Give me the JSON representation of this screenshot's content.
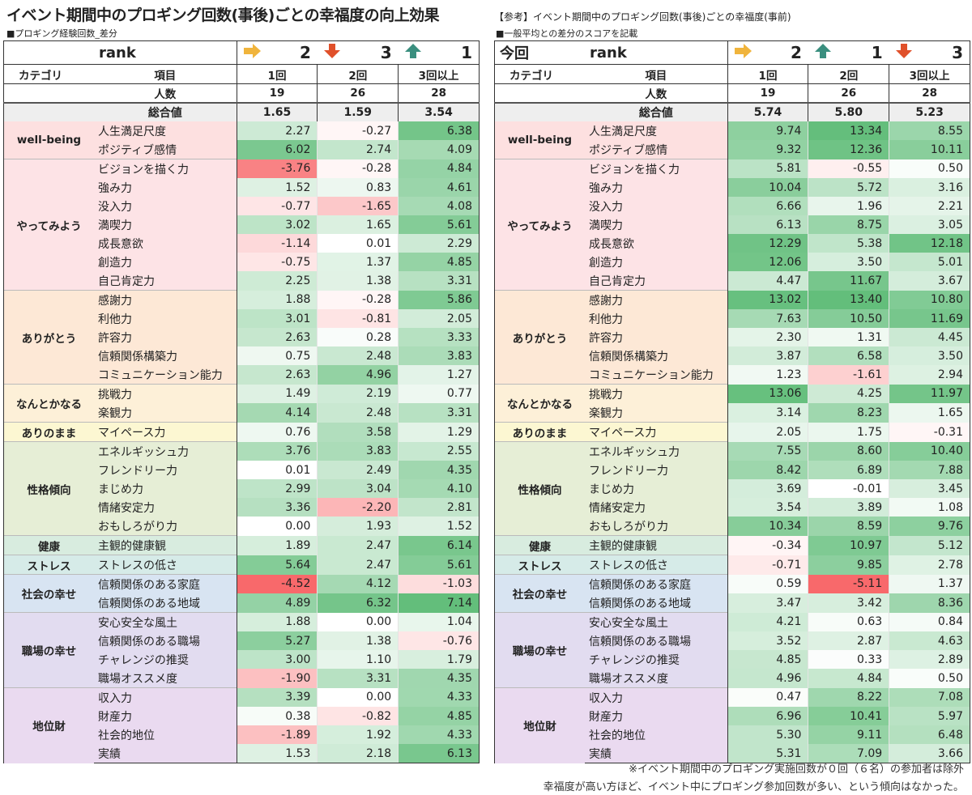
{
  "left": {
    "title": "イベント期間中のプロギング回数(事後)ごとの幸福度の向上効果",
    "subtitle": "■プロギング経験回数_差分",
    "corner": "",
    "rank_label": "rank",
    "hdr_cat": "カテゴリ",
    "hdr_item": "項目",
    "hdr_n": "人数",
    "total_label": "総合値"
  },
  "right": {
    "title": "【参考】イベント期間中のプロギング回数(事後)ごとの幸福度(事前)",
    "subtitle": "■一般平均との差分のスコアを記載",
    "corner": "今回",
    "rank_label": "rank",
    "hdr_cat": "カテゴリ",
    "hdr_item": "項目",
    "hdr_n": "人数",
    "total_label": "総合値"
  },
  "notes": {
    "line1": "※イベント期間中のプロギング実施回数が０回（６名）の参加者は除外",
    "line2": "幸福度が高い方ほど、イベント中にプロギング参加回数が多い、という傾向はなかった。"
  },
  "colors": {
    "positive": "#63be7b",
    "negative": "#f8696b",
    "neutral": "#ffffff",
    "arrow_side": "#f0b43c",
    "arrow_down": "#e0502a",
    "arrow_up": "#3a8f7f"
  },
  "categories": [
    {
      "name": "well-being",
      "color": "#fde0e0",
      "items": [
        "人生満足尺度",
        "ポジティブ感情"
      ]
    },
    {
      "name": "やってみよう",
      "color": "#fde3e6",
      "items": [
        "ビジョンを描く力",
        "強み力",
        "没入力",
        "満喫力",
        "成長意欲",
        "創造力",
        "自己肯定力"
      ]
    },
    {
      "name": "ありがとう",
      "color": "#fde8d6",
      "items": [
        "感謝力",
        "利他力",
        "許容力",
        "信頼関係構築力",
        "コミュニケーション能力"
      ]
    },
    {
      "name": "なんとかなる",
      "color": "#fdf0d8",
      "items": [
        "挑戦力",
        "楽観力"
      ]
    },
    {
      "name": "ありのまま",
      "color": "#fcf7d2",
      "items": [
        "マイペース力"
      ]
    },
    {
      "name": "性格傾向",
      "color": "#e6eed6",
      "items": [
        "エネルギッシュ力",
        "フレンドリー力",
        "まじめ力",
        "情緒安定力",
        "おもしろがり力"
      ]
    },
    {
      "name": "健康",
      "color": "#d8ecdf",
      "items": [
        "主観的健康観"
      ]
    },
    {
      "name": "ストレス",
      "color": "#d6ebe8",
      "items": [
        "ストレスの低さ"
      ]
    },
    {
      "name": "社会の幸せ",
      "color": "#d8e4f2",
      "items": [
        "信頼関係のある家庭",
        "信頼関係のある地域"
      ]
    },
    {
      "name": "職場の幸せ",
      "color": "#e2dcf0",
      "items": [
        "安心安全な風土",
        "信頼関係のある職場",
        "チャレンジの推奨",
        "職場オススメ度"
      ]
    },
    {
      "name": "地位財",
      "color": "#eadaf0",
      "items": [
        "収入力",
        "財産力",
        "社会的地位",
        "実績"
      ]
    }
  ],
  "chart_data": [
    {
      "type": "table",
      "title": "イベント期間中のプロギング回数(事後)ごとの幸福度の向上効果",
      "columns": [
        {
          "label": "1回",
          "rank": "2",
          "arrow": "side",
          "n": "19"
        },
        {
          "label": "2回",
          "rank": "3",
          "arrow": "down",
          "n": "26"
        },
        {
          "label": "3回以上",
          "rank": "1",
          "arrow": "up",
          "n": "28"
        }
      ],
      "totals": [
        1.65,
        1.59,
        3.54
      ],
      "rows": [
        [
          2.27,
          -0.27,
          6.38
        ],
        [
          6.02,
          2.74,
          4.09
        ],
        [
          -3.76,
          -0.28,
          4.84
        ],
        [
          1.52,
          0.83,
          4.61
        ],
        [
          -0.77,
          -1.65,
          4.08
        ],
        [
          3.02,
          1.65,
          5.61
        ],
        [
          -1.14,
          0.01,
          2.29
        ],
        [
          -0.75,
          1.37,
          4.85
        ],
        [
          2.25,
          1.38,
          3.31
        ],
        [
          1.88,
          -0.28,
          5.86
        ],
        [
          3.01,
          -0.81,
          2.05
        ],
        [
          2.63,
          0.28,
          3.33
        ],
        [
          0.75,
          2.48,
          3.83
        ],
        [
          2.63,
          4.96,
          1.27
        ],
        [
          1.49,
          2.19,
          0.77
        ],
        [
          4.14,
          2.48,
          3.31
        ],
        [
          0.76,
          3.58,
          1.29
        ],
        [
          3.76,
          3.83,
          2.55
        ],
        [
          0.01,
          2.49,
          4.35
        ],
        [
          2.99,
          3.04,
          4.1
        ],
        [
          3.36,
          -2.2,
          2.81
        ],
        [
          0.0,
          1.93,
          1.52
        ],
        [
          1.89,
          2.47,
          6.14
        ],
        [
          5.64,
          2.47,
          5.61
        ],
        [
          -4.52,
          4.12,
          -1.03
        ],
        [
          4.89,
          6.32,
          7.14
        ],
        [
          1.88,
          0.0,
          1.04
        ],
        [
          5.27,
          1.38,
          -0.76
        ],
        [
          3.0,
          1.1,
          1.79
        ],
        [
          -1.9,
          3.31,
          4.35
        ],
        [
          3.39,
          0.0,
          4.33
        ],
        [
          0.38,
          -0.82,
          4.85
        ],
        [
          -1.89,
          1.92,
          4.33
        ],
        [
          1.53,
          2.18,
          6.13
        ]
      ]
    },
    {
      "type": "table",
      "title": "【参考】イベント期間中のプロギング回数(事後)ごとの幸福度(事前)",
      "columns": [
        {
          "label": "1回",
          "rank": "2",
          "arrow": "side",
          "n": "19"
        },
        {
          "label": "2回",
          "rank": "1",
          "arrow": "up",
          "n": "26"
        },
        {
          "label": "3回以上",
          "rank": "3",
          "arrow": "down",
          "n": "28"
        }
      ],
      "totals": [
        5.74,
        5.8,
        5.23
      ],
      "rows": [
        [
          9.74,
          13.34,
          8.55
        ],
        [
          9.32,
          12.36,
          10.11
        ],
        [
          5.81,
          -0.55,
          0.5
        ],
        [
          10.04,
          5.72,
          3.16
        ],
        [
          6.66,
          1.96,
          2.21
        ],
        [
          6.13,
          8.75,
          3.05
        ],
        [
          12.29,
          5.38,
          12.18
        ],
        [
          12.06,
          3.5,
          5.01
        ],
        [
          4.47,
          11.67,
          3.67
        ],
        [
          13.02,
          13.4,
          10.8
        ],
        [
          7.63,
          10.5,
          11.69
        ],
        [
          2.3,
          1.31,
          4.45
        ],
        [
          3.87,
          6.58,
          3.5
        ],
        [
          1.23,
          -1.61,
          2.94
        ],
        [
          13.06,
          4.25,
          11.97
        ],
        [
          3.14,
          8.23,
          1.65
        ],
        [
          2.05,
          1.75,
          -0.31
        ],
        [
          7.55,
          8.6,
          10.4
        ],
        [
          8.42,
          6.89,
          7.88
        ],
        [
          3.69,
          -0.01,
          3.45
        ],
        [
          3.54,
          3.89,
          1.08
        ],
        [
          10.34,
          8.59,
          9.76
        ],
        [
          -0.34,
          10.97,
          5.12
        ],
        [
          -0.71,
          9.85,
          2.78
        ],
        [
          0.59,
          -5.11,
          1.37
        ],
        [
          3.47,
          3.42,
          8.36
        ],
        [
          4.21,
          0.63,
          0.84
        ],
        [
          3.52,
          2.87,
          4.63
        ],
        [
          4.85,
          0.33,
          2.89
        ],
        [
          4.96,
          4.84,
          0.5
        ],
        [
          0.47,
          8.22,
          7.08
        ],
        [
          6.96,
          10.41,
          5.97
        ],
        [
          5.3,
          9.11,
          6.48
        ],
        [
          5.31,
          7.09,
          3.66
        ]
      ]
    }
  ]
}
